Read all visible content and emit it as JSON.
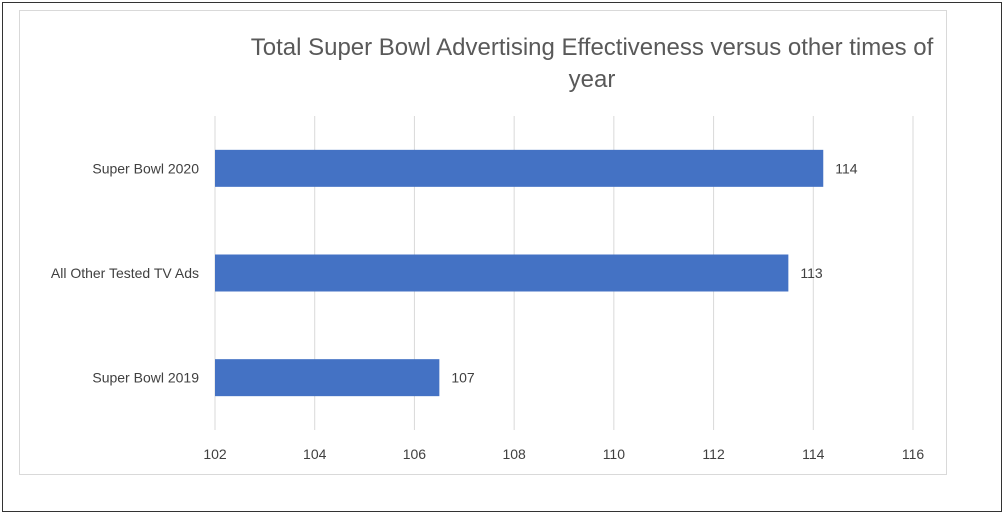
{
  "chart_data": {
    "type": "bar",
    "orientation": "horizontal",
    "title": "Total Super Bowl Advertising Effectiveness versus other times of year",
    "categories": [
      "Super Bowl 2020",
      "All Other Tested TV Ads",
      "Super Bowl 2019"
    ],
    "values": [
      114.2,
      113.5,
      106.5
    ],
    "data_labels": [
      "114",
      "113",
      "107"
    ],
    "xlim": [
      102,
      116
    ],
    "xticks": [
      102,
      104,
      106,
      108,
      110,
      112,
      114,
      116
    ],
    "xtick_labels": [
      "102",
      "104",
      "106",
      "108",
      "110",
      "112",
      "114",
      "116"
    ],
    "grid": true,
    "legend": "none",
    "bar_color": "#4472c4",
    "grid_color": "#d9d9d9"
  }
}
